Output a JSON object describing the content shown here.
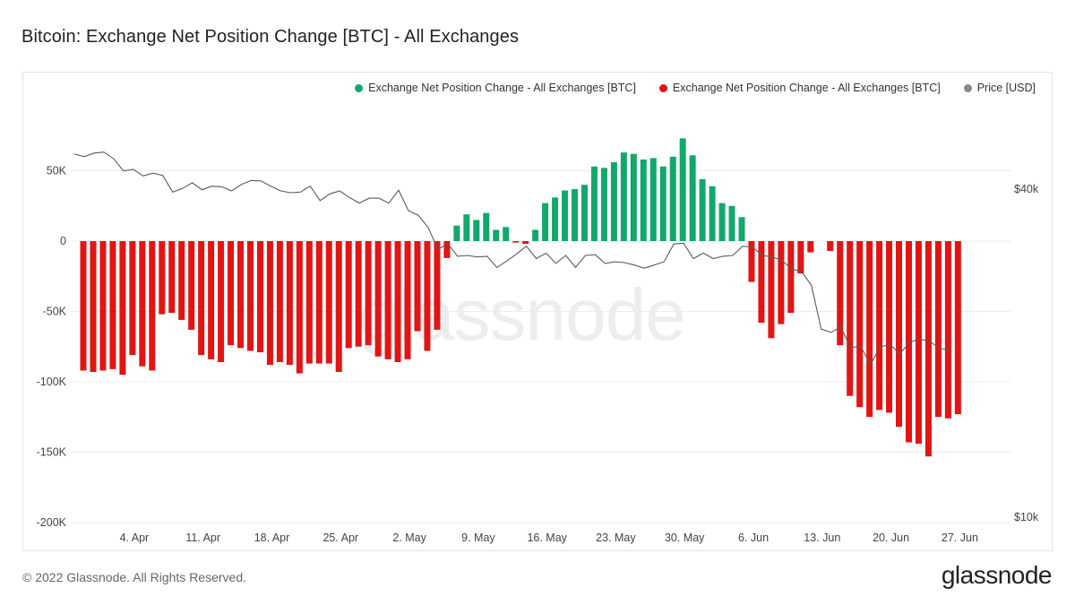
{
  "header": {
    "title": "Bitcoin: Exchange Net Position Change [BTC] - All Exchanges"
  },
  "legend": {
    "items": [
      {
        "label": "Exchange Net Position Change - All Exchanges [BTC]",
        "color": "#12a86b"
      },
      {
        "label": "Exchange Net Position Change - All Exchanges [BTC]",
        "color": "#e31414"
      },
      {
        "label": "Price [USD]",
        "color": "#888888"
      }
    ]
  },
  "watermark": "glassnode",
  "footer": {
    "copyright": "© 2022 Glassnode. All Rights Reserved.",
    "brand": "glassnode"
  },
  "chart_data": {
    "type": "bar",
    "title": "Bitcoin: Exchange Net Position Change [BTC] - All Exchanges",
    "x_tick_labels": [
      "4. Apr",
      "11. Apr",
      "18. Apr",
      "25. Apr",
      "2. May",
      "9. May",
      "16. May",
      "23. May",
      "30. May",
      "6. Jun",
      "13. Jun",
      "20. Jun",
      "27. Jun"
    ],
    "y_left": {
      "ticks": [
        50000,
        0,
        -50000,
        -100000,
        -150000,
        -200000
      ],
      "tick_labels": [
        "50K",
        "0",
        "-50K",
        "-100K",
        "-150K",
        "-200K"
      ],
      "range": [
        -200000,
        75000
      ]
    },
    "y_right": {
      "ticks": [
        "$40k",
        "$10k"
      ],
      "scale": "log",
      "range_usd": [
        10000,
        40000
      ]
    },
    "colors": {
      "positive": "#12a86b",
      "negative": "#e31414",
      "price": "#888888",
      "grid": "#ececec"
    },
    "first_date": "2022-04-01",
    "series": [
      {
        "name": "Exchange Net Position Change - All Exchanges [BTC]",
        "values": [
          -92000,
          -93000,
          -92000,
          -91000,
          -95000,
          -81000,
          -89000,
          -92000,
          -52000,
          -51000,
          -56000,
          -63000,
          -81000,
          -84000,
          -86000,
          -74000,
          -76000,
          -78000,
          -79000,
          -88000,
          -86000,
          -88000,
          -94000,
          -87000,
          -87000,
          -87000,
          -93000,
          -76000,
          -75000,
          -74000,
          -82000,
          -84000,
          -86000,
          -84000,
          -64000,
          -78000,
          -63000,
          -12000,
          11000,
          19000,
          15000,
          20000,
          8000,
          10000,
          -1000,
          -2000,
          8000,
          27000,
          31000,
          36000,
          37000,
          40000,
          53000,
          52000,
          56000,
          63000,
          62000,
          58000,
          59000,
          53000,
          60000,
          73000,
          61000,
          44000,
          39000,
          27000,
          25000,
          17000,
          -29000,
          -58000,
          -69000,
          -59000,
          -51000,
          -23000,
          -8000,
          0,
          -7000,
          -74000,
          -110000,
          -118000,
          -125000,
          -120000,
          -122000,
          -132000,
          -143000,
          -144000,
          -153000,
          -125000,
          -126000,
          -123000
        ]
      },
      {
        "name": "Price [USD]",
        "values": [
          46400,
          45900,
          46600,
          46800,
          45500,
          43200,
          43500,
          42300,
          42800,
          42400,
          39500,
          40100,
          41100,
          39900,
          40500,
          40400,
          39700,
          40800,
          41500,
          41400,
          40500,
          39700,
          39400,
          39500,
          40500,
          38100,
          39200,
          39700,
          38600,
          37700,
          38500,
          38500,
          37700,
          39800,
          36500,
          35800,
          34000,
          31000,
          31700,
          30100,
          30200,
          30000,
          30100,
          28700,
          29500,
          30400,
          31400,
          29800,
          30500,
          29200,
          30200,
          28700,
          30200,
          30300,
          29200,
          29400,
          29300,
          29000,
          28600,
          29000,
          29400,
          31700,
          31800,
          29800,
          30500,
          29800,
          30100,
          30200,
          31400,
          31300,
          30200,
          30000,
          29600,
          28500,
          28200,
          26600,
          22100,
          21800,
          22300,
          20400,
          20600,
          19000,
          20500,
          20700,
          19900,
          20900,
          21200,
          21000,
          20400,
          20200
        ]
      }
    ]
  }
}
